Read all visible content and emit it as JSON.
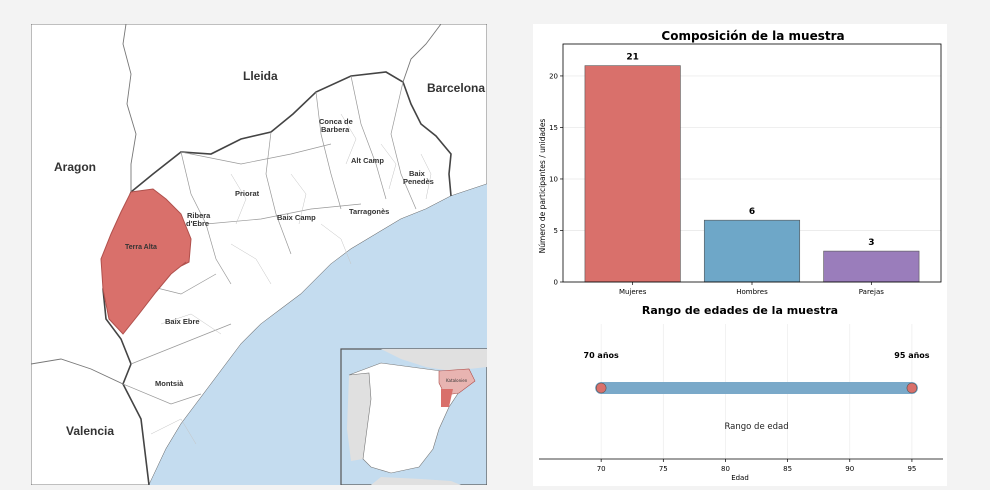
{
  "map": {
    "labels": {
      "lleida": "Lleida",
      "barcelona": "Barcelona",
      "aragon": "Aragon",
      "valencia": "Valencia",
      "conca": [
        "Conca de",
        "Barbera"
      ],
      "alt_camp": "Alt Camp",
      "baix_penedes": [
        "Baix",
        "Penedès"
      ],
      "priorat": "Priorat",
      "ribera": [
        "Ribera",
        "d'Ebre"
      ],
      "baix_camp": "Baix Camp",
      "tarragones": "Tarragonès",
      "terra_alta": "Terra Alta",
      "baix_ebre": "Baix Ebre",
      "montsia": "Montsià",
      "inset_catalunya": "Katalonien"
    },
    "colors": {
      "highlight": "#d9706b",
      "sea": "#c4dcef",
      "land": "#ffffff",
      "outside": "#e8e8e8"
    }
  },
  "chart_data": [
    {
      "type": "bar",
      "title": "Composición de la muestra",
      "ylabel": "Número de participantes / unidades",
      "categories": [
        "Mujeres",
        "Hombres",
        "Parejas"
      ],
      "values": [
        21,
        6,
        3
      ],
      "colors": [
        "#d9706b",
        "#6ea7c8",
        "#9a7dbb"
      ],
      "ylim": [
        0,
        23.1
      ],
      "yticks": [
        0,
        5,
        10,
        15,
        20
      ],
      "grid": true
    },
    {
      "type": "range",
      "title": "Rango de edades de la muestra",
      "xlabel": "Edad",
      "range": [
        70,
        95
      ],
      "range_label": "Rango de edad",
      "min_label": "70 años",
      "max_label": "95 años",
      "xlim": [
        65,
        97.5
      ],
      "xticks": [
        70,
        75,
        80,
        85,
        90,
        95
      ],
      "bar_color": "#7aa9c9",
      "end_color": "#d9706b"
    }
  ]
}
